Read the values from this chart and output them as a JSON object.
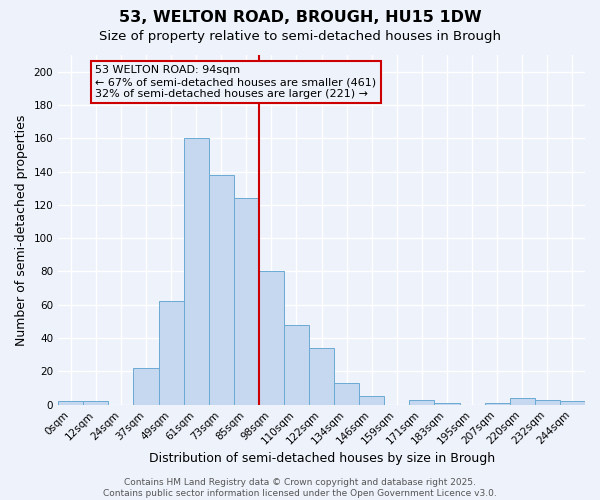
{
  "title": "53, WELTON ROAD, BROUGH, HU15 1DW",
  "subtitle": "Size of property relative to semi-detached houses in Brough",
  "xlabel": "Distribution of semi-detached houses by size in Brough",
  "ylabel": "Number of semi-detached properties",
  "footer_line1": "Contains HM Land Registry data © Crown copyright and database right 2025.",
  "footer_line2": "Contains public sector information licensed under the Open Government Licence v3.0.",
  "bin_labels": [
    "0sqm",
    "12sqm",
    "24sqm",
    "37sqm",
    "49sqm",
    "61sqm",
    "73sqm",
    "85sqm",
    "98sqm",
    "110sqm",
    "122sqm",
    "134sqm",
    "146sqm",
    "159sqm",
    "171sqm",
    "183sqm",
    "195sqm",
    "207sqm",
    "220sqm",
    "232sqm",
    "244sqm"
  ],
  "bar_values": [
    2,
    2,
    0,
    22,
    62,
    160,
    138,
    124,
    80,
    48,
    34,
    13,
    5,
    0,
    3,
    1,
    0,
    1,
    4,
    3,
    2
  ],
  "bar_color": "#c5d8f0",
  "bar_edge_color": "#6aaad4",
  "vline_index": 8,
  "vline_color": "#cc0000",
  "annotation_text": "53 WELTON ROAD: 94sqm\n← 67% of semi-detached houses are smaller (461)\n32% of semi-detached houses are larger (221) →",
  "annotation_box_edge": "#cc0000",
  "ylim": [
    0,
    210
  ],
  "yticks": [
    0,
    20,
    40,
    60,
    80,
    100,
    120,
    140,
    160,
    180,
    200
  ],
  "background_color": "#eef2fb",
  "grid_color": "#ffffff",
  "title_fontsize": 11.5,
  "subtitle_fontsize": 9.5,
  "axis_label_fontsize": 9,
  "tick_fontsize": 7.5,
  "annotation_fontsize": 8
}
